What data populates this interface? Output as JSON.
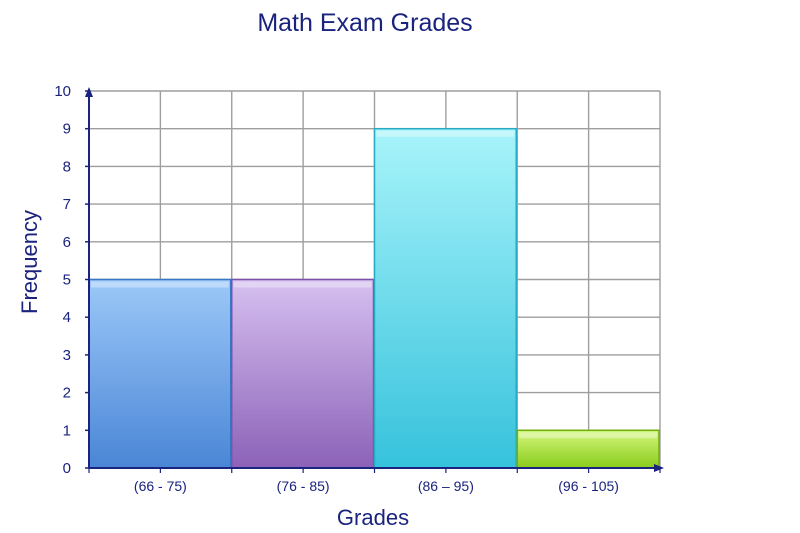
{
  "chart_data": {
    "type": "bar",
    "title": "Math Exam Grades",
    "xlabel": "Grades",
    "ylabel": "Frequency",
    "categories": [
      "(66 - 75)",
      "(76 - 85)",
      "(86 – 95)",
      "(96 - 105)"
    ],
    "values": [
      5,
      5,
      9,
      1
    ],
    "ylim": [
      0,
      10
    ],
    "yticks": [
      0,
      1,
      2,
      3,
      4,
      5,
      6,
      7,
      8,
      9,
      10
    ],
    "grid": true,
    "bar_colors": [
      {
        "top": "#9cc8f8",
        "bottom": "#4a86d6",
        "edge": "#3a76c6"
      },
      {
        "top": "#d6c0f0",
        "bottom": "#8c62b8",
        "edge": "#7a52a8"
      },
      {
        "top": "#a8f4fa",
        "bottom": "#36c2dc",
        "edge": "#28aac4"
      },
      {
        "top": "#d4f77e",
        "bottom": "#8acc1a",
        "edge": "#72b010"
      }
    ],
    "axis_color": "#1a237e",
    "grid_color": "#9e9e9e"
  }
}
